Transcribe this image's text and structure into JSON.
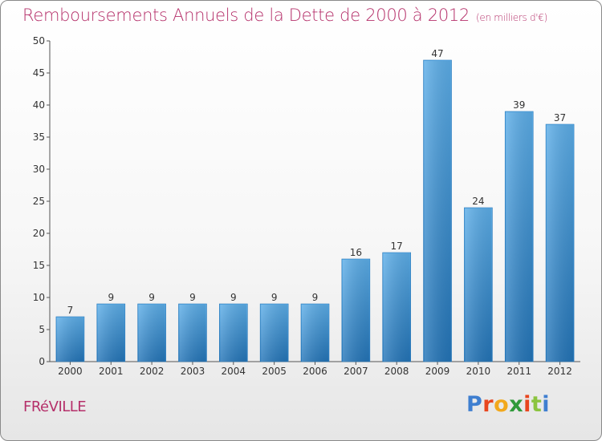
{
  "chart_data": {
    "type": "bar",
    "title": "Remboursements Annuels de la Dette de 2000 à 2012",
    "subtitle": "(en milliers d'€)",
    "categories": [
      "2000",
      "2001",
      "2002",
      "2003",
      "2004",
      "2005",
      "2006",
      "2007",
      "2008",
      "2009",
      "2010",
      "2011",
      "2012"
    ],
    "values": [
      7,
      9,
      9,
      9,
      9,
      9,
      9,
      16,
      17,
      47,
      24,
      39,
      37
    ],
    "ylim": [
      0,
      50
    ],
    "yticks": [
      0,
      5,
      10,
      15,
      20,
      25,
      30,
      35,
      40,
      45,
      50
    ],
    "grid": false,
    "bar_color": "#3a93d8",
    "data_labels": true
  },
  "footer": {
    "town": "FRéVILLE",
    "brand": "Proxiti",
    "brand_colors": [
      "#3f7fd0",
      "#e8461e",
      "#f2a81c",
      "#2f9a3a",
      "#e8461e",
      "#8bc43f",
      "#3f7fd0"
    ]
  }
}
